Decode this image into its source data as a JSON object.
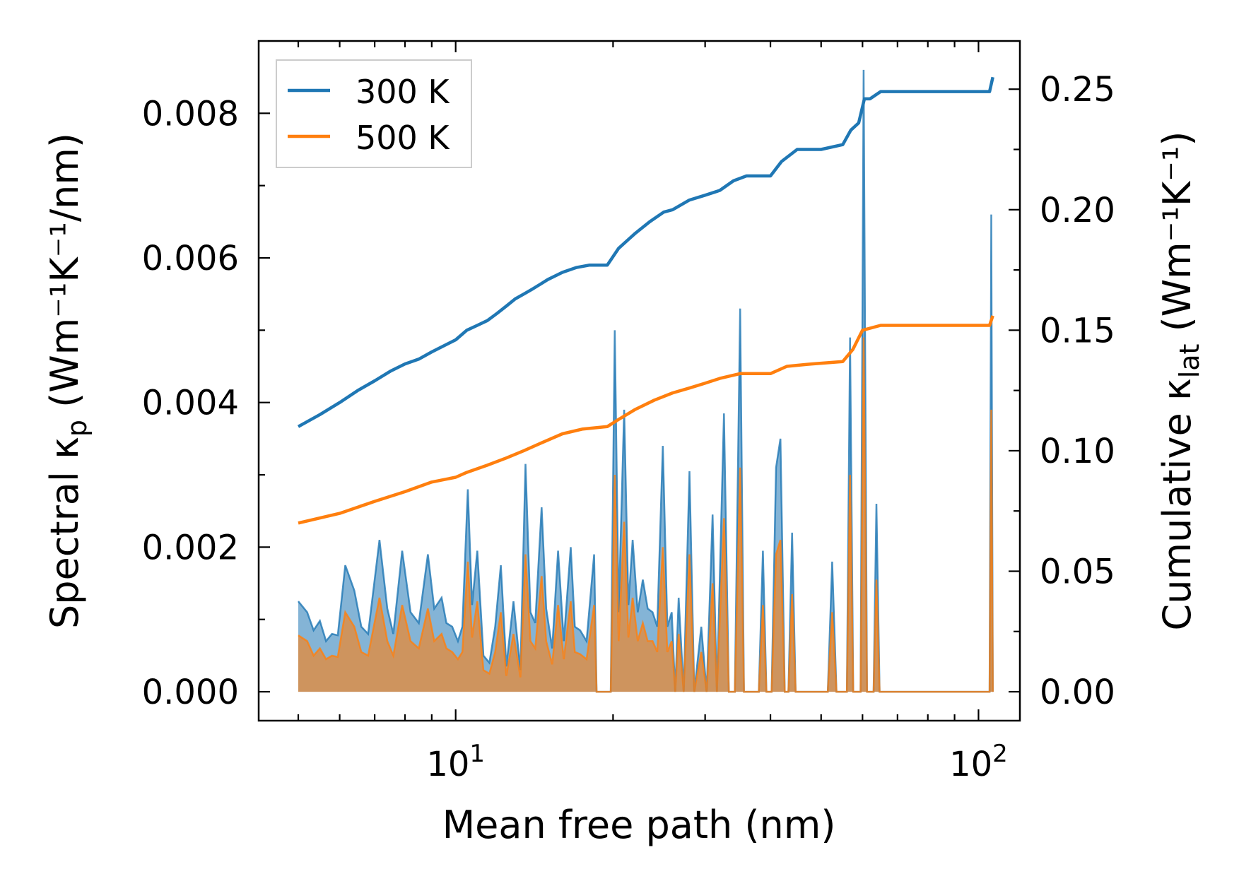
{
  "chart_data": {
    "type": "line",
    "xlabel": "Mean free path (nm)",
    "ylabel_left": {
      "main": "Spectral κ",
      "sub": "p",
      "units": " (Wm⁻¹K⁻¹/nm)"
    },
    "ylabel_right": {
      "main": "Cumulative κ",
      "sub": "lat",
      "units": " (Wm⁻¹K⁻¹)"
    },
    "xscale": "log",
    "xlim": [
      4.2,
      120
    ],
    "ylim_left": [
      -0.0004,
      0.009
    ],
    "ylim_right": [
      -0.012,
      0.27
    ],
    "x_ticks": [
      {
        "value": 10,
        "base": "10",
        "exp": "1"
      },
      {
        "value": 100,
        "base": "10",
        "exp": "2"
      }
    ],
    "yticks_left": [
      "0.000",
      "0.002",
      "0.004",
      "0.006",
      "0.008"
    ],
    "yticks_right": [
      "0.00",
      "0.05",
      "0.10",
      "0.15",
      "0.20",
      "0.25"
    ],
    "legend": {
      "placement": "top-left",
      "entries": [
        {
          "label": "300 K",
          "color": "#1f77b4"
        },
        {
          "label": "500 K",
          "color": "#ff7f0e"
        }
      ]
    },
    "cumulative": [
      {
        "name": "300 K",
        "color": "#1f77b4",
        "points": [
          [
            5.0,
            0.11
          ],
          [
            5.5,
            0.115
          ],
          [
            6.0,
            0.12
          ],
          [
            6.5,
            0.125
          ],
          [
            7.0,
            0.129
          ],
          [
            7.5,
            0.133
          ],
          [
            8.0,
            0.136
          ],
          [
            8.5,
            0.138
          ],
          [
            9.0,
            0.141
          ],
          [
            10.0,
            0.146
          ],
          [
            10.5,
            0.15
          ],
          [
            11.0,
            0.152
          ],
          [
            11.5,
            0.154
          ],
          [
            12.0,
            0.157
          ],
          [
            12.5,
            0.16
          ],
          [
            13.0,
            0.163
          ],
          [
            13.5,
            0.165
          ],
          [
            14.0,
            0.167
          ],
          [
            14.5,
            0.169
          ],
          [
            15.0,
            0.171
          ],
          [
            16.0,
            0.174
          ],
          [
            17.0,
            0.176
          ],
          [
            18.0,
            0.177
          ],
          [
            19.5,
            0.177
          ],
          [
            20.5,
            0.184
          ],
          [
            22.0,
            0.19
          ],
          [
            23.5,
            0.195
          ],
          [
            25.0,
            0.199
          ],
          [
            26.0,
            0.2
          ],
          [
            28.0,
            0.204
          ],
          [
            30.0,
            0.206
          ],
          [
            32.0,
            0.208
          ],
          [
            34.0,
            0.212
          ],
          [
            36.0,
            0.214
          ],
          [
            40.0,
            0.214
          ],
          [
            42.0,
            0.22
          ],
          [
            45.0,
            0.225
          ],
          [
            50.0,
            0.225
          ],
          [
            55.0,
            0.227
          ],
          [
            57.0,
            0.233
          ],
          [
            59.0,
            0.236
          ],
          [
            60.5,
            0.246
          ],
          [
            62.0,
            0.246
          ],
          [
            65.0,
            0.249
          ],
          [
            80.0,
            0.249
          ],
          [
            105.0,
            0.249
          ],
          [
            106.5,
            0.255
          ]
        ]
      },
      {
        "name": "500 K",
        "color": "#ff7f0e",
        "points": [
          [
            5.0,
            0.07
          ],
          [
            6.0,
            0.074
          ],
          [
            7.0,
            0.079
          ],
          [
            8.0,
            0.083
          ],
          [
            9.0,
            0.087
          ],
          [
            10.0,
            0.089
          ],
          [
            10.5,
            0.091
          ],
          [
            11.5,
            0.094
          ],
          [
            12.5,
            0.097
          ],
          [
            13.5,
            0.1
          ],
          [
            14.5,
            0.103
          ],
          [
            16.0,
            0.107
          ],
          [
            17.5,
            0.109
          ],
          [
            19.5,
            0.11
          ],
          [
            20.5,
            0.113
          ],
          [
            22.0,
            0.117
          ],
          [
            24.0,
            0.121
          ],
          [
            26.0,
            0.124
          ],
          [
            28.0,
            0.126
          ],
          [
            30.0,
            0.128
          ],
          [
            32.0,
            0.13
          ],
          [
            35.0,
            0.132
          ],
          [
            40.0,
            0.132
          ],
          [
            43.0,
            0.135
          ],
          [
            48.0,
            0.136
          ],
          [
            55.0,
            0.137
          ],
          [
            57.5,
            0.142
          ],
          [
            60.0,
            0.15
          ],
          [
            65.0,
            0.152
          ],
          [
            80.0,
            0.152
          ],
          [
            105.0,
            0.152
          ],
          [
            106.5,
            0.156
          ]
        ]
      }
    ],
    "spectral": [
      {
        "name": "300 K",
        "color": "#1f77b4",
        "points": [
          [
            5.0,
            0.00125
          ],
          [
            5.2,
            0.0011
          ],
          [
            5.35,
            0.00085
          ],
          [
            5.5,
            0.00098
          ],
          [
            5.65,
            0.0007
          ],
          [
            5.8,
            0.0008
          ],
          [
            5.95,
            0.00078
          ],
          [
            6.15,
            0.00175
          ],
          [
            6.4,
            0.0014
          ],
          [
            6.6,
            0.0009
          ],
          [
            6.8,
            0.0008
          ],
          [
            7.15,
            0.0021
          ],
          [
            7.4,
            0.00115
          ],
          [
            7.6,
            0.0008
          ],
          [
            7.9,
            0.00195
          ],
          [
            8.2,
            0.0011
          ],
          [
            8.5,
            0.00095
          ],
          [
            8.85,
            0.0019
          ],
          [
            9.1,
            0.00115
          ],
          [
            9.4,
            0.0013
          ],
          [
            9.6,
            0.00095
          ],
          [
            9.85,
            0.0009
          ],
          [
            10.1,
            0.0007
          ],
          [
            10.3,
            0.0009
          ],
          [
            10.55,
            0.0028
          ],
          [
            10.75,
            0.0012
          ],
          [
            11.0,
            0.00195
          ],
          [
            11.3,
            0.0005
          ],
          [
            11.6,
            0.0004
          ],
          [
            11.9,
            0.0009
          ],
          [
            12.2,
            0.00175
          ],
          [
            12.5,
            0.00035
          ],
          [
            12.9,
            0.00125
          ],
          [
            13.3,
            0.0003
          ],
          [
            13.6,
            0.00315
          ],
          [
            13.9,
            0.0011
          ],
          [
            14.2,
            0.00095
          ],
          [
            14.6,
            0.00255
          ],
          [
            14.9,
            0.00115
          ],
          [
            15.3,
            0.0006
          ],
          [
            15.7,
            0.00195
          ],
          [
            16.1,
            0.0007
          ],
          [
            16.6,
            0.002
          ],
          [
            16.9,
            0.0009
          ],
          [
            17.3,
            0.00085
          ],
          [
            17.8,
            0.0007
          ],
          [
            18.4,
            0.0019
          ],
          [
            18.6,
            0.0
          ],
          [
            19.8,
            0.0
          ],
          [
            20.15,
            0.005
          ],
          [
            20.5,
            0.0011
          ],
          [
            21.0,
            0.0039
          ],
          [
            21.4,
            0.0012
          ],
          [
            21.8,
            0.0021
          ],
          [
            22.3,
            0.0011
          ],
          [
            22.8,
            0.00155
          ],
          [
            23.3,
            0.00115
          ],
          [
            23.8,
            0.0011
          ],
          [
            24.3,
            0.0009
          ],
          [
            24.9,
            0.0034
          ],
          [
            25.4,
            0.0009
          ],
          [
            25.9,
            0.0011
          ],
          [
            26.3,
            0.0
          ],
          [
            26.7,
            0.0013
          ],
          [
            27.3,
            0.0
          ],
          [
            28.0,
            0.00305
          ],
          [
            28.6,
            0.0
          ],
          [
            29.5,
            0.0009
          ],
          [
            30.2,
            0.0
          ],
          [
            31.0,
            0.00245
          ],
          [
            31.6,
            0.0
          ],
          [
            32.6,
            0.00385
          ],
          [
            33.3,
            0.0
          ],
          [
            34.2,
            0.0
          ],
          [
            35.0,
            0.0053
          ],
          [
            35.6,
            0.0
          ],
          [
            38.0,
            0.0
          ],
          [
            38.7,
            0.00195
          ],
          [
            39.3,
            0.0
          ],
          [
            40.2,
            0.0
          ],
          [
            41.0,
            0.0031
          ],
          [
            41.8,
            0.0035
          ],
          [
            42.6,
            0.0
          ],
          [
            43.3,
            0.0
          ],
          [
            44.0,
            0.0022
          ],
          [
            44.7,
            0.0
          ],
          [
            46.0,
            0.0
          ],
          [
            50.0,
            0.0
          ],
          [
            51.5,
            0.0
          ],
          [
            52.5,
            0.0018
          ],
          [
            53.5,
            0.0
          ],
          [
            56.0,
            0.0
          ],
          [
            56.8,
            0.0049
          ],
          [
            57.6,
            0.0
          ],
          [
            59.5,
            0.0
          ],
          [
            60.3,
            0.0086
          ],
          [
            61.2,
            0.0
          ],
          [
            63.0,
            0.0
          ],
          [
            63.8,
            0.0026
          ],
          [
            64.7,
            0.0
          ],
          [
            70.0,
            0.0
          ],
          [
            80.0,
            0.0
          ],
          [
            90.0,
            0.0
          ],
          [
            105.0,
            0.0
          ],
          [
            105.8,
            0.0066
          ],
          [
            106.5,
            0.0
          ]
        ]
      },
      {
        "name": "500 K",
        "color": "#ff7f0e",
        "points": [
          [
            5.0,
            0.00078
          ],
          [
            5.2,
            0.0007
          ],
          [
            5.35,
            0.0005
          ],
          [
            5.5,
            0.0006
          ],
          [
            5.65,
            0.00045
          ],
          [
            5.8,
            0.0005
          ],
          [
            5.95,
            0.00048
          ],
          [
            6.15,
            0.0011
          ],
          [
            6.4,
            0.0009
          ],
          [
            6.6,
            0.00055
          ],
          [
            6.8,
            0.0005
          ],
          [
            7.15,
            0.0013
          ],
          [
            7.4,
            0.0007
          ],
          [
            7.6,
            0.0005
          ],
          [
            7.9,
            0.0012
          ],
          [
            8.2,
            0.0007
          ],
          [
            8.5,
            0.0006
          ],
          [
            8.85,
            0.00115
          ],
          [
            9.1,
            0.0007
          ],
          [
            9.4,
            0.0008
          ],
          [
            9.6,
            0.0006
          ],
          [
            9.85,
            0.00055
          ],
          [
            10.1,
            0.00045
          ],
          [
            10.3,
            0.00055
          ],
          [
            10.55,
            0.0018
          ],
          [
            10.75,
            0.00075
          ],
          [
            11.0,
            0.00125
          ],
          [
            11.3,
            0.0003
          ],
          [
            11.6,
            0.00025
          ],
          [
            11.9,
            0.00055
          ],
          [
            12.2,
            0.0011
          ],
          [
            12.5,
            0.00022
          ],
          [
            12.9,
            0.0008
          ],
          [
            13.3,
            0.0002
          ],
          [
            13.6,
            0.0019
          ],
          [
            13.9,
            0.0007
          ],
          [
            14.2,
            0.0006
          ],
          [
            14.6,
            0.0016
          ],
          [
            14.9,
            0.0007
          ],
          [
            15.3,
            0.00038
          ],
          [
            15.7,
            0.0012
          ],
          [
            16.1,
            0.00045
          ],
          [
            16.6,
            0.00125
          ],
          [
            16.9,
            0.00055
          ],
          [
            17.3,
            0.00052
          ],
          [
            17.8,
            0.00045
          ],
          [
            18.4,
            0.0012
          ],
          [
            18.6,
            0.0
          ],
          [
            19.8,
            0.0
          ],
          [
            20.15,
            0.003
          ],
          [
            20.5,
            0.0007
          ],
          [
            21.0,
            0.00235
          ],
          [
            21.4,
            0.00075
          ],
          [
            21.8,
            0.0013
          ],
          [
            22.3,
            0.0007
          ],
          [
            22.8,
            0.00095
          ],
          [
            23.3,
            0.0007
          ],
          [
            23.8,
            0.0007
          ],
          [
            24.3,
            0.00055
          ],
          [
            24.9,
            0.002
          ],
          [
            25.4,
            0.00055
          ],
          [
            25.9,
            0.0007
          ],
          [
            26.3,
            0.0
          ],
          [
            26.7,
            0.0008
          ],
          [
            27.3,
            0.0
          ],
          [
            28.0,
            0.0019
          ],
          [
            28.6,
            0.0
          ],
          [
            29.5,
            0.00055
          ],
          [
            30.2,
            0.0
          ],
          [
            31.0,
            0.0015
          ],
          [
            31.6,
            0.0
          ],
          [
            32.6,
            0.0024
          ],
          [
            33.3,
            0.0
          ],
          [
            34.2,
            0.0
          ],
          [
            35.0,
            0.0031
          ],
          [
            35.6,
            0.0
          ],
          [
            38.0,
            0.0
          ],
          [
            38.7,
            0.0012
          ],
          [
            39.3,
            0.0
          ],
          [
            40.2,
            0.0
          ],
          [
            41.0,
            0.0019
          ],
          [
            41.8,
            0.0021
          ],
          [
            42.6,
            0.0
          ],
          [
            43.3,
            0.0
          ],
          [
            44.0,
            0.00135
          ],
          [
            44.7,
            0.0
          ],
          [
            46.0,
            0.0
          ],
          [
            50.0,
            0.0
          ],
          [
            51.5,
            0.0
          ],
          [
            52.5,
            0.0011
          ],
          [
            53.5,
            0.0
          ],
          [
            56.0,
            0.0
          ],
          [
            56.8,
            0.003
          ],
          [
            57.6,
            0.0
          ],
          [
            59.5,
            0.0
          ],
          [
            60.3,
            0.0049
          ],
          [
            61.2,
            0.0
          ],
          [
            63.0,
            0.0
          ],
          [
            63.8,
            0.00155
          ],
          [
            64.7,
            0.0
          ],
          [
            70.0,
            0.0
          ],
          [
            80.0,
            0.0
          ],
          [
            90.0,
            0.0
          ],
          [
            105.0,
            0.0
          ],
          [
            105.8,
            0.0039
          ],
          [
            106.5,
            0.0
          ]
        ]
      }
    ]
  }
}
